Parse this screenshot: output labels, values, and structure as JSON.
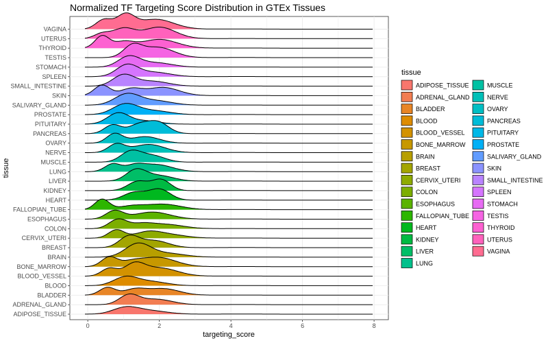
{
  "chart_data": {
    "type": "ridgeline",
    "title": "Normalized TF Targeting Score Distribution in GTEx Tissues",
    "xlabel": "targeting_score",
    "ylabel": "tissue",
    "xlim": [
      -0.5,
      8.4
    ],
    "x_ticks": [
      0,
      2,
      4,
      6,
      8
    ],
    "grid": true,
    "legend_position": "right",
    "legend_title": "tissue",
    "tissues": [
      {
        "name": "ADIPOSE_TISSUE",
        "color": "#F8766D",
        "peaks": [
          [
            1.05,
            0.55,
            0.35
          ],
          [
            1.7,
            0.32,
            0.5
          ]
        ]
      },
      {
        "name": "ADRENAL_GLAND",
        "color": "#F27D52",
        "peaks": [
          [
            1.15,
            0.85,
            0.27
          ],
          [
            1.9,
            0.5,
            0.45
          ]
        ]
      },
      {
        "name": "BLADDER",
        "color": "#E88526",
        "peaks": [
          [
            0.55,
            0.7,
            0.22
          ],
          [
            1.3,
            0.5,
            0.3
          ],
          [
            2.1,
            0.6,
            0.45
          ]
        ]
      },
      {
        "name": "BLOOD",
        "color": "#DE8C00",
        "peaks": [
          [
            1.05,
            0.75,
            0.33
          ],
          [
            1.75,
            0.38,
            0.45
          ]
        ]
      },
      {
        "name": "BLOOD_VESSEL",
        "color": "#D39200",
        "peaks": [
          [
            0.6,
            0.7,
            0.22
          ],
          [
            1.3,
            1.0,
            0.28
          ],
          [
            2.0,
            0.75,
            0.5
          ]
        ]
      },
      {
        "name": "BONE_MARROW",
        "color": "#C79800",
        "peaks": [
          [
            0.6,
            0.85,
            0.22
          ],
          [
            1.2,
            0.35,
            0.3
          ],
          [
            1.95,
            0.85,
            0.5
          ]
        ]
      },
      {
        "name": "BRAIN",
        "color": "#B79F00",
        "peaks": [
          [
            1.4,
            1.2,
            0.35
          ],
          [
            2.2,
            0.35,
            0.5
          ]
        ]
      },
      {
        "name": "BREAST",
        "color": "#A3A500",
        "peaks": [
          [
            1.15,
            1.0,
            0.27
          ],
          [
            1.85,
            0.65,
            0.4
          ]
        ]
      },
      {
        "name": "CERVIX_UTERI",
        "color": "#8EAB00",
        "peaks": [
          [
            0.8,
            0.75,
            0.22
          ],
          [
            1.65,
            0.45,
            0.35
          ],
          [
            2.2,
            0.35,
            0.5
          ]
        ]
      },
      {
        "name": "COLON",
        "color": "#7CAE00",
        "peaks": [
          [
            0.85,
            0.85,
            0.25
          ],
          [
            1.5,
            0.35,
            0.3
          ],
          [
            2.15,
            0.4,
            0.5
          ]
        ]
      },
      {
        "name": "ESOPHAGUS",
        "color": "#5BB300",
        "peaks": [
          [
            0.75,
            0.75,
            0.24
          ],
          [
            1.8,
            0.65,
            0.5
          ]
        ]
      },
      {
        "name": "FALLOPIAN_TUBE",
        "color": "#2DB600",
        "peaks": [
          [
            0.4,
            0.95,
            0.2
          ],
          [
            1.2,
            0.3,
            0.35
          ],
          [
            2.1,
            0.5,
            0.5
          ]
        ]
      },
      {
        "name": "HEART",
        "color": "#00B81F",
        "peaks": [
          [
            1.3,
            0.7,
            0.3
          ],
          [
            2.0,
            1.0,
            0.3
          ]
        ]
      },
      {
        "name": "KIDNEY",
        "color": "#00BA42",
        "peaks": [
          [
            1.4,
            0.85,
            0.28
          ],
          [
            2.05,
            1.0,
            0.26
          ]
        ]
      },
      {
        "name": "LIVER",
        "color": "#00BE67",
        "peaks": [
          [
            1.35,
            1.0,
            0.28
          ],
          [
            2.0,
            0.5,
            0.4
          ]
        ]
      },
      {
        "name": "LUNG",
        "color": "#00C08B",
        "peaks": [
          [
            0.7,
            0.7,
            0.22
          ],
          [
            1.3,
            0.45,
            0.25
          ],
          [
            1.9,
            0.65,
            0.45
          ]
        ]
      },
      {
        "name": "MUSCLE",
        "color": "#00C1A3",
        "peaks": [
          [
            1.2,
            0.95,
            0.28
          ],
          [
            1.8,
            0.6,
            0.35
          ]
        ]
      },
      {
        "name": "NERVE",
        "color": "#00C0B8",
        "peaks": [
          [
            0.8,
            0.75,
            0.23
          ],
          [
            1.7,
            0.75,
            0.45
          ]
        ]
      },
      {
        "name": "OVARY",
        "color": "#00BFC4",
        "peaks": [
          [
            0.75,
            0.85,
            0.22
          ],
          [
            1.6,
            0.6,
            0.4
          ]
        ]
      },
      {
        "name": "PANCREAS",
        "color": "#00BCD8",
        "peaks": [
          [
            0.7,
            0.8,
            0.23
          ],
          [
            1.4,
            0.75,
            0.28
          ],
          [
            1.95,
            1.05,
            0.3
          ]
        ]
      },
      {
        "name": "PITUITARY",
        "color": "#00B8E7",
        "peaks": [
          [
            0.85,
            1.0,
            0.3
          ],
          [
            1.6,
            0.3,
            0.4
          ]
        ]
      },
      {
        "name": "PROSTATE",
        "color": "#00B0F6",
        "peaks": [
          [
            1.05,
            0.95,
            0.35
          ],
          [
            1.85,
            0.35,
            0.45
          ]
        ]
      },
      {
        "name": "SALIVARY_GLAND",
        "color": "#619CFF",
        "peaks": [
          [
            1.1,
            1.0,
            0.35
          ],
          [
            1.9,
            0.4,
            0.45
          ]
        ]
      },
      {
        "name": "SKIN",
        "color": "#8B93FF",
        "peaks": [
          [
            0.4,
            0.95,
            0.22
          ],
          [
            1.2,
            0.6,
            0.3
          ],
          [
            2.1,
            0.75,
            0.45
          ]
        ]
      },
      {
        "name": "SMALL_INTESTINE",
        "color": "#B983FF",
        "peaks": [
          [
            1.0,
            1.0,
            0.3
          ],
          [
            1.8,
            0.45,
            0.45
          ]
        ]
      },
      {
        "name": "SPLEEN",
        "color": "#D575FE",
        "peaks": [
          [
            1.1,
            1.05,
            0.3
          ],
          [
            1.85,
            0.4,
            0.45
          ]
        ]
      },
      {
        "name": "STOMACH",
        "color": "#E76BF3",
        "peaks": [
          [
            1.15,
            0.95,
            0.3
          ],
          [
            1.9,
            0.4,
            0.45
          ]
        ]
      },
      {
        "name": "TESTIS",
        "color": "#F564E3",
        "peaks": [
          [
            1.25,
            1.0,
            0.25
          ],
          [
            1.95,
            0.95,
            0.45
          ]
        ]
      },
      {
        "name": "THYROID",
        "color": "#FD61D1",
        "peaks": [
          [
            0.4,
            1.1,
            0.2
          ],
          [
            1.0,
            0.55,
            0.28
          ],
          [
            2.0,
            0.8,
            0.5
          ]
        ]
      },
      {
        "name": "UTERUS",
        "color": "#FF62BC",
        "peaks": [
          [
            0.4,
            0.45,
            0.22
          ],
          [
            1.0,
            0.9,
            0.3
          ],
          [
            2.0,
            1.05,
            0.45
          ]
        ]
      },
      {
        "name": "VAGINA",
        "color": "#FF6C91",
        "peaks": [
          [
            0.45,
            0.85,
            0.22
          ],
          [
            1.05,
            1.25,
            0.25
          ],
          [
            1.9,
            0.9,
            0.5
          ]
        ]
      }
    ]
  }
}
